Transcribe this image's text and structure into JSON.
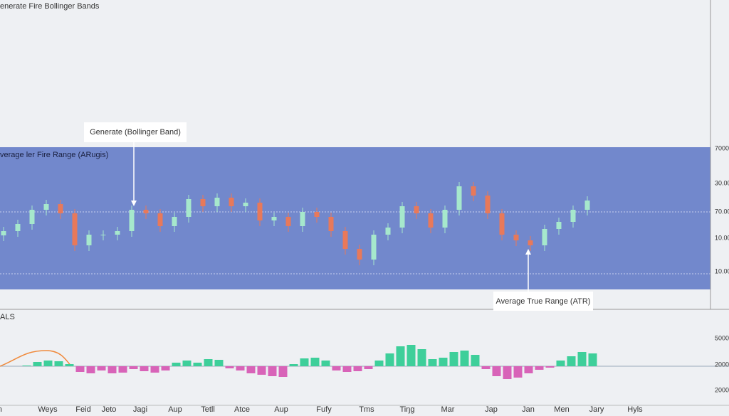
{
  "title": "enerate Fire Bollinger Bands",
  "chart_data": {
    "type": "candlestick",
    "panel_label": "verage ler Fire Range (ARugis)",
    "ylim": [
      0,
      100
    ],
    "up_color": "#a6e8cc",
    "down_color": "#e8795a",
    "band_color": "#7288cc",
    "open": [
      38,
      41,
      46,
      56,
      60,
      53.5,
      31,
      38.5,
      38.5,
      41,
      56,
      53.5,
      44.5,
      51,
      63.5,
      58.5,
      64.5,
      58.5,
      61,
      48.5,
      51,
      44.5,
      54.5,
      51,
      41,
      28.5,
      21,
      38.5,
      43.5,
      58.5,
      53.5,
      43.5,
      56,
      72.5,
      66,
      53.5,
      38.5,
      34.5,
      31,
      42.5,
      47.5,
      56
    ],
    "high": [
      44,
      49,
      59,
      63,
      63,
      56.5,
      41.5,
      41.5,
      44,
      59,
      59,
      56.5,
      54,
      66.5,
      66.5,
      67.5,
      67.5,
      64,
      64,
      54,
      54,
      57.5,
      57.5,
      54,
      44,
      31.5,
      41.5,
      46.5,
      61.5,
      61.5,
      56.5,
      59,
      75.5,
      75.5,
      69,
      56.5,
      41.5,
      37.5,
      45.5,
      50.5,
      59,
      65.5
    ],
    "low": [
      34,
      37,
      42,
      52,
      49.5,
      27,
      27,
      34.5,
      34.5,
      37,
      49.5,
      40.5,
      40.5,
      47,
      54.5,
      54.5,
      54.5,
      54.5,
      44.5,
      44.5,
      40.5,
      40.5,
      47,
      37,
      24.5,
      17,
      17,
      34.5,
      39.5,
      49.5,
      39.5,
      39.5,
      52,
      62,
      49.5,
      34.5,
      30.5,
      27,
      27,
      38.5,
      43.5,
      52
    ],
    "close": [
      41,
      46,
      56,
      60,
      53.5,
      31,
      38.5,
      38.5,
      41,
      56,
      53.5,
      44.5,
      51,
      63.5,
      58.5,
      64.5,
      58.5,
      61,
      48.5,
      51,
      44.5,
      54.5,
      51,
      41,
      28.5,
      21,
      38.5,
      43.5,
      58.5,
      53.5,
      43.5,
      56,
      72.5,
      66,
      53.5,
      38.5,
      34.5,
      31,
      42.5,
      47.5,
      56,
      62.5
    ],
    "right_axis_labels": [
      "7000",
      "30.00",
      "70.00",
      "10.00",
      "10.00"
    ]
  },
  "indicator": {
    "type": "histogram",
    "panel_label": "ALS",
    "ylim": [
      -50,
      50
    ],
    "positive_color": "#3ecf9a",
    "negative_color": "#d863b8",
    "values": [
      0,
      0,
      1,
      6,
      8,
      7,
      3,
      -8,
      -10,
      -6,
      -10,
      -9,
      -4,
      -7,
      -9,
      -6,
      5,
      8,
      5,
      10,
      9,
      -3,
      -6,
      -10,
      -12,
      -14,
      -15,
      3,
      11,
      12,
      8,
      -6,
      -8,
      -7,
      -4,
      8,
      18,
      28,
      30,
      24,
      10,
      12,
      20,
      22,
      16,
      -4,
      -14,
      -18,
      -16,
      -10,
      -5,
      -2,
      8,
      14,
      20,
      18
    ],
    "right_axis_labels": [
      "5000",
      "2000",
      "2000"
    ]
  },
  "x_axis_labels": [
    "Jon",
    "Weys",
    "Feid",
    "Jeto",
    "Jagi",
    "Aup",
    "Tetll",
    "Atce",
    "Aup",
    "Fufy",
    "Tms",
    "Tiŋg",
    "Mar",
    "Jap",
    "Jan",
    "Men",
    "Jary",
    "Hyls"
  ],
  "annotations": [
    "Generate (Bollinger Band)",
    "Average True Range (ATR)"
  ]
}
